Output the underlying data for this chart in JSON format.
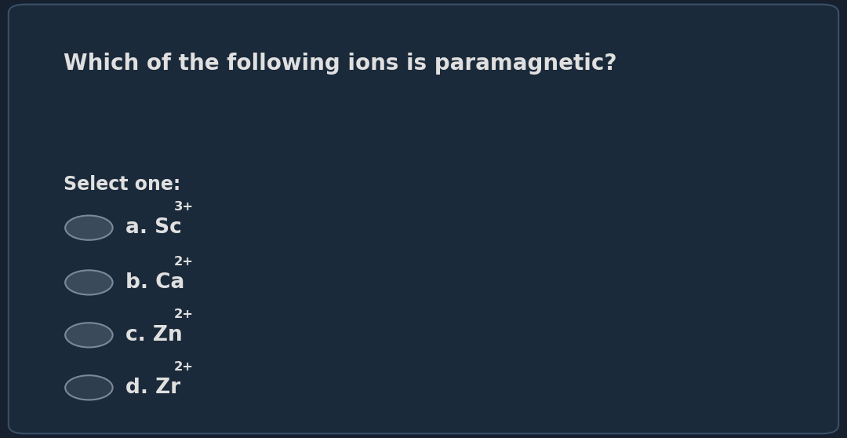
{
  "title": "Which of the following ions is paramagnetic?",
  "select_label": "Select one:",
  "options": [
    {
      "letter": "a",
      "element": "Sc",
      "charge": "3+"
    },
    {
      "letter": "b",
      "element": "Ca",
      "charge": "2+"
    },
    {
      "letter": "c",
      "element": "Zn",
      "charge": "2+"
    },
    {
      "letter": "d",
      "element": "Zr",
      "charge": "2+"
    }
  ],
  "bg_color": "#16202e",
  "inner_bg_color": "#1b2a3a",
  "border_color": "#3a5068",
  "text_color": "#e0e0e0",
  "title_fontsize": 20,
  "option_fontsize": 19,
  "select_fontsize": 17,
  "circle_fill_colors": [
    "#3a4a5a",
    "#3a4a5a",
    "#3a4a5a",
    "#2e3e4e"
  ],
  "circle_edge_color": "#7a8a9a",
  "figsize": [
    10.8,
    5.58
  ],
  "dpi": 100
}
